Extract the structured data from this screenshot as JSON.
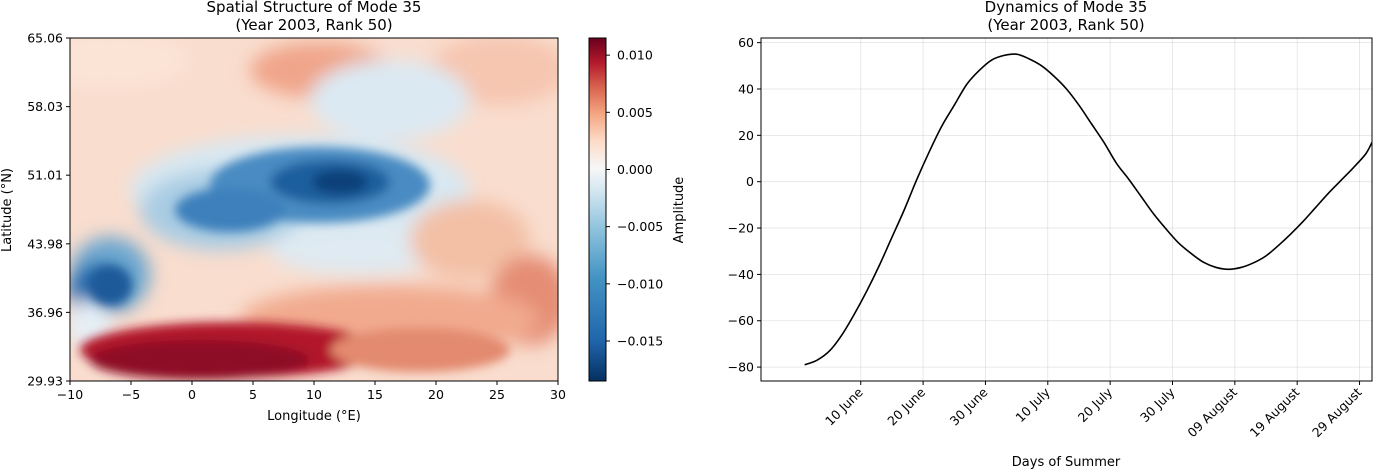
{
  "chart_data": [
    {
      "type": "heatmap",
      "title_line1": "Spatial Structure of Mode 35",
      "title_line2": "(Year 2003, Rank 50)",
      "xlabel": "Longitude (°E)",
      "ylabel": "Latitude (°N)",
      "xlim": [
        -10,
        30
      ],
      "ylim": [
        29.93,
        65.06
      ],
      "xticks": [
        "−10",
        "−5",
        "0",
        "5",
        "10",
        "15",
        "20",
        "25",
        "30"
      ],
      "xtick_values": [
        -10,
        -5,
        0,
        5,
        10,
        15,
        20,
        25,
        30
      ],
      "yticks": [
        "29.93",
        "36.96",
        "43.98",
        "51.01",
        "58.03",
        "65.06"
      ],
      "ytick_values": [
        29.93,
        36.96,
        43.98,
        51.01,
        58.03,
        65.06
      ],
      "colormap": "RdBu_r",
      "colorbar": {
        "label": "Amplitude",
        "range": [
          -0.0185,
          0.0115
        ],
        "ticks": [
          "−0.015",
          "−0.010",
          "−0.005",
          "0.000",
          "0.005",
          "0.010"
        ],
        "tick_values": [
          -0.015,
          -0.01,
          -0.005,
          0.0,
          0.005,
          0.01
        ]
      },
      "colors": {
        "strong_negative": "#053061",
        "negative": "#2166ac",
        "light_negative": "#92c5de",
        "neutral": "#f7f7f7",
        "light_positive": "#f4a582",
        "positive": "#d6604d",
        "strong_positive": "#67001f"
      }
    },
    {
      "type": "line",
      "title_line1": "Dynamics of Mode 35",
      "title_line2": "(Year 2003, Rank 50)",
      "xlabel": "Days of Summer",
      "ylabel": "",
      "xlim": [
        -7,
        91
      ],
      "ylim": [
        -86,
        62
      ],
      "xticks": [
        "10 June",
        "20 June",
        "30 June",
        "10 July",
        "20 July",
        "30 July",
        "09 August",
        "19 August",
        "29 August"
      ],
      "xtick_values": [
        9,
        19,
        29,
        39,
        49,
        59,
        69,
        79,
        89
      ],
      "yticks": [
        "−80",
        "−60",
        "−40",
        "−20",
        "0",
        "20",
        "40",
        "60"
      ],
      "ytick_values": [
        -80,
        -60,
        -40,
        -20,
        0,
        20,
        40,
        60
      ],
      "grid": true,
      "line_color": "#000000",
      "series": [
        {
          "x": [
            0,
            2,
            4,
            6,
            8,
            10,
            12,
            14,
            16,
            18,
            20,
            22,
            24,
            26,
            28,
            30,
            32,
            34,
            36,
            38,
            40,
            42,
            44,
            46,
            48,
            50,
            52,
            54,
            56,
            58,
            60,
            62,
            64,
            66,
            68,
            70,
            72,
            74,
            76,
            78,
            80,
            82,
            84,
            86,
            88,
            90,
            91
          ],
          "values": [
            -79,
            -77,
            -73,
            -66,
            -57,
            -47,
            -36,
            -24,
            -12,
            1,
            13,
            24,
            33,
            42,
            48,
            52.5,
            54.5,
            55,
            53,
            50,
            45.5,
            40,
            33,
            25,
            17,
            8,
            1,
            -6.5,
            -14,
            -20.5,
            -26.5,
            -31,
            -34.8,
            -37,
            -37.8,
            -37,
            -35,
            -32,
            -27.5,
            -22.5,
            -17,
            -11,
            -5,
            0.5,
            6,
            12,
            17
          ]
        }
      ]
    }
  ]
}
